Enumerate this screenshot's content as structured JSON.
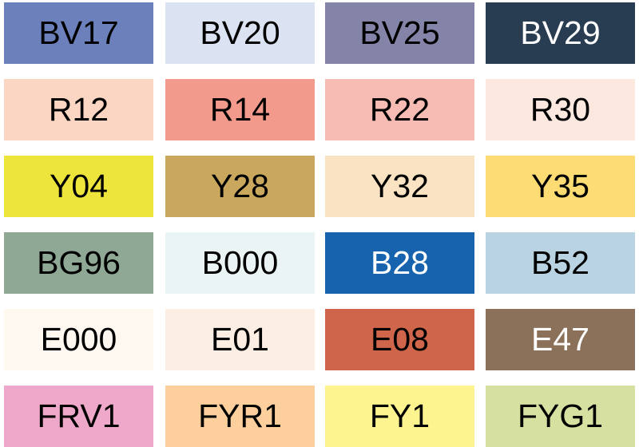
{
  "swatches": [
    {
      "code": "BV17",
      "color": "#6c80bb",
      "text": "#000000"
    },
    {
      "code": "BV20",
      "color": "#dbe2f1",
      "text": "#000000"
    },
    {
      "code": "BV25",
      "color": "#8483a8",
      "text": "#000000"
    },
    {
      "code": "BV29",
      "color": "#283d52",
      "text": "#ffffff"
    },
    {
      "code": "R12",
      "color": "#fbd6c2",
      "text": "#000000"
    },
    {
      "code": "R14",
      "color": "#f29a8b",
      "text": "#000000"
    },
    {
      "code": "R22",
      "color": "#f6bbb3",
      "text": "#000000"
    },
    {
      "code": "R30",
      "color": "#fde8e0",
      "text": "#000000"
    },
    {
      "code": "Y04",
      "color": "#ede43c",
      "text": "#000000"
    },
    {
      "code": "Y28",
      "color": "#c9a85e",
      "text": "#000000"
    },
    {
      "code": "Y32",
      "color": "#f9e3c2",
      "text": "#000000"
    },
    {
      "code": "Y35",
      "color": "#fddc73",
      "text": "#000000"
    },
    {
      "code": "BG96",
      "color": "#8fa895",
      "text": "#000000"
    },
    {
      "code": "B000",
      "color": "#eaf4f5",
      "text": "#000000"
    },
    {
      "code": "B28",
      "color": "#1763ae",
      "text": "#ffffff"
    },
    {
      "code": "B52",
      "color": "#b9d3e2",
      "text": "#000000"
    },
    {
      "code": "E000",
      "color": "#fef8f0",
      "text": "#000000"
    },
    {
      "code": "E01",
      "color": "#fdeee4",
      "text": "#000000"
    },
    {
      "code": "E08",
      "color": "#cf654a",
      "text": "#000000"
    },
    {
      "code": "E47",
      "color": "#8b705a",
      "text": "#ffffff"
    },
    {
      "code": "FRV1",
      "color": "#eea8c9",
      "text": "#000000"
    },
    {
      "code": "FYR1",
      "color": "#fccf9c",
      "text": "#000000"
    },
    {
      "code": "FY1",
      "color": "#fdf48f",
      "text": "#000000"
    },
    {
      "code": "FYG1",
      "color": "#d6e0a1",
      "text": "#000000"
    }
  ]
}
